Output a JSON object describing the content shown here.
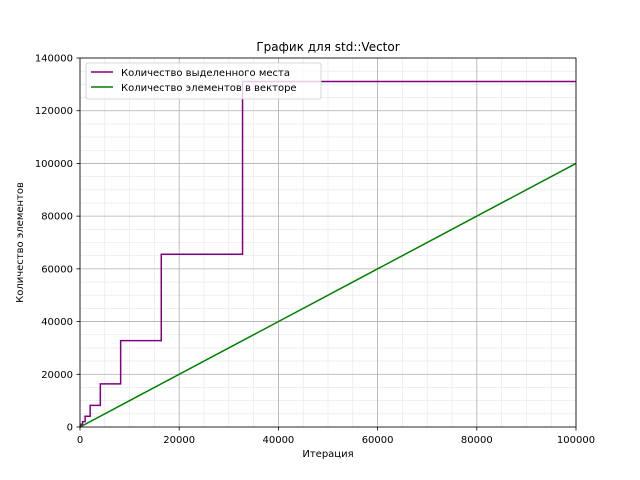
{
  "chart_data": {
    "type": "line",
    "title": "График для std::Vector",
    "xlabel": "Итерация",
    "ylabel": "Количество элементов",
    "xlim": [
      0,
      100000
    ],
    "ylim": [
      0,
      140000
    ],
    "x_ticks": [
      0,
      20000,
      40000,
      60000,
      80000,
      100000
    ],
    "y_ticks": [
      0,
      20000,
      40000,
      60000,
      80000,
      100000,
      120000,
      140000
    ],
    "grid": true,
    "minor_grid": true,
    "legend_position": "top-left",
    "series": [
      {
        "name": "Количество выделенного места",
        "color": "#800080",
        "style": "step",
        "x": [
          0,
          1,
          2,
          3,
          5,
          9,
          17,
          33,
          65,
          129,
          257,
          513,
          1025,
          2049,
          4097,
          8193,
          16385,
          32769,
          65537,
          100000
        ],
        "y": [
          1,
          2,
          4,
          8,
          16,
          32,
          64,
          128,
          256,
          512,
          1024,
          2048,
          4096,
          8192,
          16384,
          32768,
          65536,
          131072,
          131072,
          131072
        ]
      },
      {
        "name": "Количество элементов в векторе",
        "color": "#008000",
        "style": "line",
        "x": [
          0,
          100000
        ],
        "y": [
          0,
          100000
        ]
      }
    ]
  }
}
